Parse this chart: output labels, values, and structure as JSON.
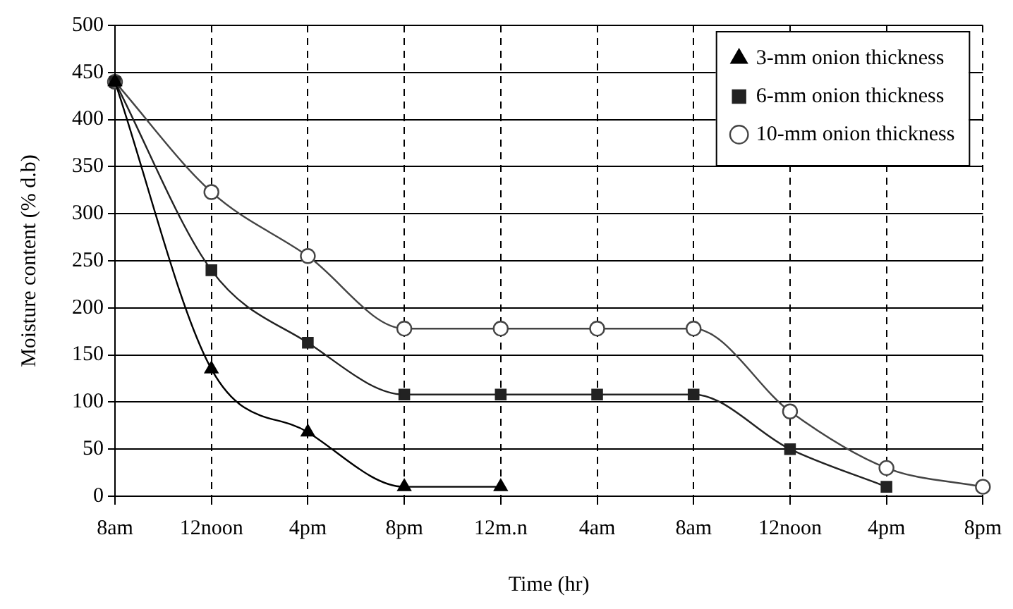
{
  "chart_data": {
    "type": "line",
    "xlabel": "Time (hr)",
    "ylabel": "Moisture content (% d.b)",
    "categories": [
      "8am",
      "12noon",
      "4pm",
      "8pm",
      "12m.n",
      "4am",
      "8am",
      "12noon",
      "4pm",
      "8pm"
    ],
    "series": [
      {
        "name": "3-mm onion thickness",
        "color": "#000000",
        "marker": "triangle",
        "values": [
          440,
          135,
          68,
          10,
          10,
          null,
          null,
          null,
          null,
          null
        ]
      },
      {
        "name": "6-mm onion thickness",
        "color": "#222222",
        "marker": "square",
        "values": [
          440,
          240,
          163,
          108,
          108,
          108,
          108,
          50,
          10,
          null
        ]
      },
      {
        "name": "10-mm onion thickness",
        "color": "#444444",
        "marker": "circle",
        "values": [
          440,
          323,
          255,
          178,
          178,
          178,
          178,
          90,
          30,
          10
        ]
      }
    ],
    "ylim": [
      0,
      500
    ],
    "yticks": [
      0,
      50,
      100,
      150,
      200,
      250,
      300,
      350,
      400,
      450,
      500
    ],
    "grid": true,
    "legend": "top right",
    "line_style": "solid"
  }
}
